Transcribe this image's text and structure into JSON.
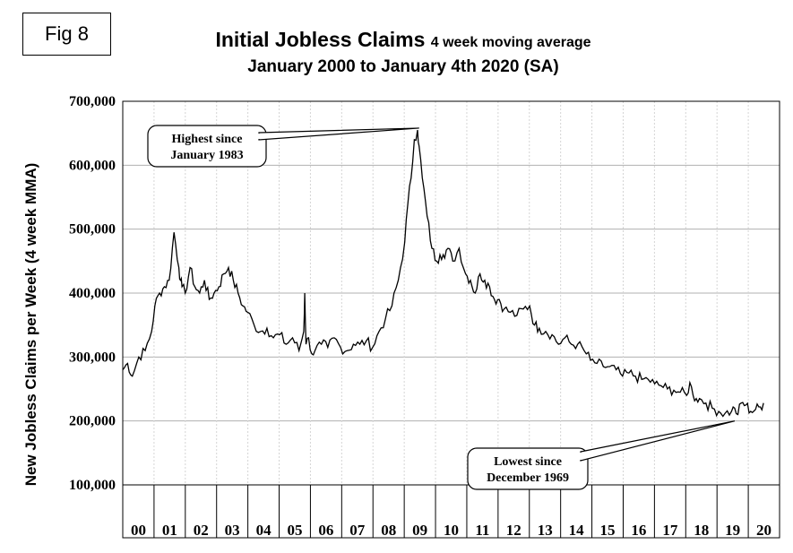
{
  "figure_label": "Fig 8",
  "chart_data": {
    "type": "line",
    "title": "Initial Jobless Claims",
    "title_suffix": "4 week moving average",
    "subtitle": "January 2000 to January 4th 2020 (SA)",
    "ylabel": "New Jobless Claims per Week (4 week MMA)",
    "xlabel": "",
    "ylim": [
      100000,
      700000
    ],
    "xlim": [
      2000,
      2020.5
    ],
    "y_ticks": [
      100000,
      200000,
      300000,
      400000,
      500000,
      600000,
      700000
    ],
    "y_tick_labels": [
      "100,000",
      "200,000",
      "300,000",
      "400,000",
      "500,000",
      "600,000",
      "700,000"
    ],
    "x_tick_labels": [
      "00",
      "01",
      "02",
      "03",
      "04",
      "05",
      "06",
      "07",
      "08",
      "09",
      "10",
      "11",
      "12",
      "13",
      "14",
      "15",
      "16",
      "17",
      "18",
      "19",
      "20"
    ],
    "grid": true,
    "series": [
      {
        "values_x": [
          2000.0,
          2000.15,
          2000.3,
          2000.5,
          2000.7,
          2000.9,
          2001.0,
          2001.15,
          2001.3,
          2001.45,
          2001.6,
          2001.75,
          2001.8,
          2001.85,
          2001.95,
          2002.1,
          2002.25,
          2002.4,
          2002.55,
          2002.7,
          2002.85,
          2003.0,
          2003.15,
          2003.3,
          2003.45,
          2003.6,
          2003.75,
          2003.9,
          2004.1,
          2004.3,
          2004.5,
          2004.7,
          2004.9,
          2005.1,
          2005.3,
          2005.5,
          2005.65,
          2005.68,
          2005.72,
          2005.8,
          2005.9,
          2006.0,
          2006.2,
          2006.4,
          2006.6,
          2006.8,
          2007.0,
          2007.2,
          2007.4,
          2007.6,
          2007.8,
          2008.0,
          2008.2,
          2008.4,
          2008.6,
          2008.8,
          2008.9,
          2009.0,
          2009.1,
          2009.2,
          2009.25,
          2009.35,
          2009.5,
          2009.65,
          2009.8,
          2009.9,
          2010.0,
          2010.15,
          2010.3,
          2010.5,
          2010.7,
          2010.85,
          2011.0,
          2011.15,
          2011.3,
          2011.45,
          2011.6,
          2011.75,
          2011.9,
          2012.1,
          2012.3,
          2012.5,
          2012.7,
          2012.85,
          2013.0,
          2013.2,
          2013.4,
          2013.6,
          2013.8,
          2014.0,
          2014.2,
          2014.4,
          2014.6,
          2014.8,
          2015.0,
          2015.2,
          2015.4,
          2015.6,
          2015.8,
          2016.0,
          2016.2,
          2016.4,
          2016.6,
          2016.8,
          2017.0,
          2017.2,
          2017.4,
          2017.6,
          2017.7,
          2017.8,
          2017.9,
          2018.0,
          2018.2,
          2018.4,
          2018.6,
          2018.8,
          2019.0,
          2019.1,
          2019.2,
          2019.3,
          2019.45,
          2019.6,
          2019.75,
          2019.9,
          2020.0
        ],
        "values": [
          280000,
          290000,
          270000,
          300000,
          310000,
          340000,
          380000,
          400000,
          410000,
          420000,
          495000,
          440000,
          420000,
          410000,
          400000,
          440000,
          410000,
          400000,
          420000,
          390000,
          400000,
          410000,
          430000,
          440000,
          420000,
          400000,
          380000,
          370000,
          350000,
          340000,
          345000,
          330000,
          335000,
          320000,
          330000,
          310000,
          340000,
          400000,
          320000,
          330000,
          305000,
          310000,
          320000,
          315000,
          330000,
          315000,
          310000,
          320000,
          320000,
          325000,
          315000,
          340000,
          360000,
          380000,
          420000,
          480000,
          540000,
          580000,
          640000,
          655000,
          630000,
          580000,
          520000,
          470000,
          450000,
          460000,
          460000,
          470000,
          450000,
          470000,
          430000,
          420000,
          400000,
          430000,
          420000,
          410000,
          390000,
          390000,
          375000,
          370000,
          365000,
          375000,
          380000,
          350000,
          345000,
          340000,
          335000,
          320000,
          330000,
          320000,
          320000,
          310000,
          295000,
          290000,
          285000,
          285000,
          280000,
          270000,
          275000,
          270000,
          265000,
          265000,
          258000,
          255000,
          250000,
          248000,
          245000,
          240000,
          260000,
          240000,
          235000,
          235000,
          228000,
          220000,
          215000,
          212000,
          215000,
          220000,
          210000,
          228000,
          225000,
          215000,
          218000,
          222000,
          228000
        ]
      }
    ],
    "annotations": [
      {
        "line1": "Highest since",
        "line2": "January 1983",
        "x": 2009.25,
        "y": 658000
      },
      {
        "line1": "Lowest since",
        "line2": "December 1969",
        "x": 2019.1,
        "y": 200000
      }
    ]
  }
}
